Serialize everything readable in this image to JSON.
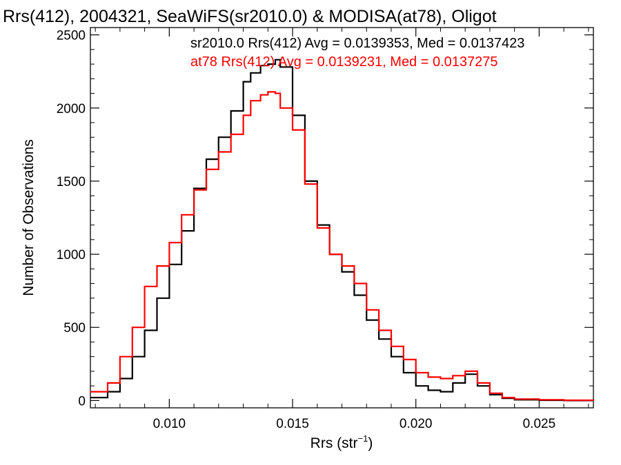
{
  "chart_data": {
    "type": "line",
    "title": "Rrs(412), 2004321, SeaWiFS(sr2010.0) & MODISA(at78), Oligot",
    "xlabel_base": "Rrs (str",
    "xlabel_sup": "−1",
    "xlabel_end": ")",
    "ylabel": "Number of Observations",
    "xlim": [
      0.0068,
      0.0272
    ],
    "ylim": [
      -50,
      2550
    ],
    "xticks": [
      {
        "value": 0.01,
        "label": "0.010"
      },
      {
        "value": 0.015,
        "label": "0.015"
      },
      {
        "value": 0.02,
        "label": "0.020"
      },
      {
        "value": 0.025,
        "label": "0.025"
      }
    ],
    "yticks": [
      {
        "value": 0,
        "label": "0"
      },
      {
        "value": 500,
        "label": "500"
      },
      {
        "value": 1000,
        "label": "1000"
      },
      {
        "value": 1500,
        "label": "1500"
      },
      {
        "value": 2000,
        "label": "2000"
      },
      {
        "value": 2500,
        "label": "2500"
      }
    ],
    "legend_placement": "top-right",
    "annotations": [
      {
        "text": "sr2010.0 Rrs(412) Avg = 0.0139353, Med = 0.0137423",
        "color": "#000000"
      },
      {
        "text": "at78 Rrs(412) Avg = 0.0139231, Med = 0.0137275",
        "color": "#ff0000"
      }
    ],
    "series": [
      {
        "color": "#000000",
        "x": [
          0.0068,
          0.0075,
          0.008,
          0.0085,
          0.009,
          0.0095,
          0.01,
          0.0105,
          0.011,
          0.0115,
          0.012,
          0.0125,
          0.013,
          0.0133,
          0.0137,
          0.014,
          0.0143,
          0.0145,
          0.015,
          0.0155,
          0.016,
          0.0165,
          0.017,
          0.0175,
          0.018,
          0.0185,
          0.019,
          0.0195,
          0.02,
          0.0205,
          0.021,
          0.0215,
          0.022,
          0.0225,
          0.023,
          0.0235,
          0.024,
          0.025,
          0.026,
          0.0272
        ],
        "y": [
          20,
          60,
          150,
          300,
          480,
          700,
          930,
          1160,
          1450,
          1650,
          1800,
          1980,
          2180,
          2240,
          2290,
          2300,
          2330,
          2280,
          1950,
          1500,
          1200,
          1000,
          880,
          720,
          550,
          420,
          300,
          190,
          100,
          70,
          60,
          120,
          180,
          100,
          40,
          15,
          5,
          2,
          0,
          0
        ]
      },
      {
        "color": "#ff0000",
        "x": [
          0.0068,
          0.0075,
          0.008,
          0.0085,
          0.009,
          0.0095,
          0.01,
          0.0105,
          0.011,
          0.0115,
          0.012,
          0.0125,
          0.013,
          0.0133,
          0.0137,
          0.014,
          0.0143,
          0.0145,
          0.015,
          0.0155,
          0.016,
          0.0165,
          0.017,
          0.0175,
          0.018,
          0.0185,
          0.019,
          0.0195,
          0.02,
          0.0205,
          0.021,
          0.0215,
          0.022,
          0.0225,
          0.023,
          0.0235,
          0.024,
          0.025,
          0.026,
          0.0272
        ],
        "y": [
          60,
          120,
          300,
          500,
          780,
          920,
          1080,
          1270,
          1440,
          1580,
          1700,
          1820,
          1950,
          2050,
          2090,
          2110,
          2100,
          2000,
          1850,
          1480,
          1180,
          1000,
          920,
          800,
          620,
          480,
          370,
          280,
          190,
          160,
          150,
          170,
          200,
          120,
          50,
          20,
          10,
          5,
          2,
          0
        ]
      }
    ]
  }
}
